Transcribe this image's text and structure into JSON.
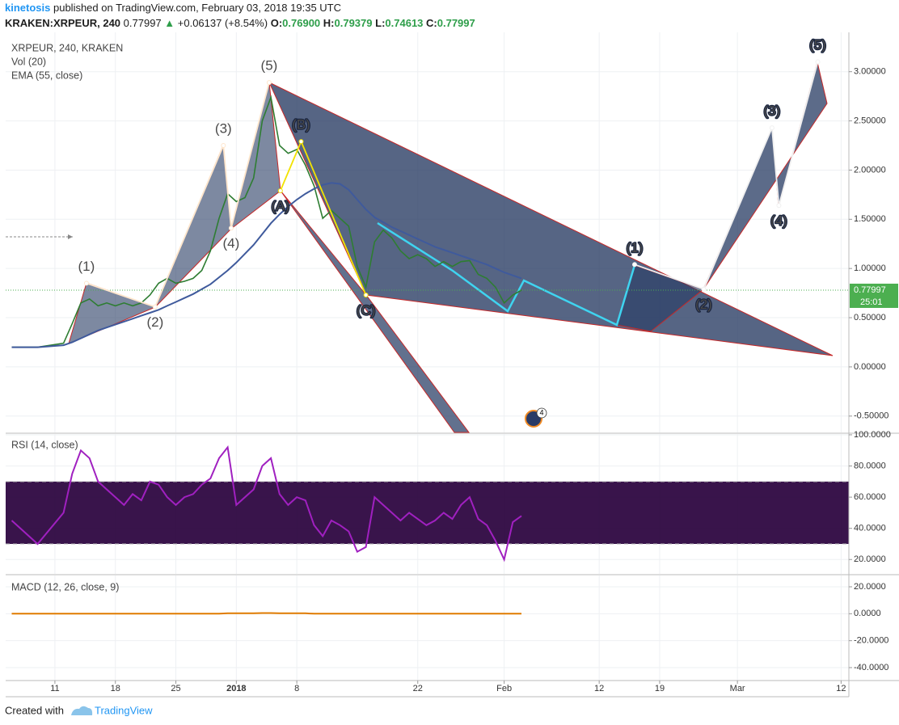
{
  "header": {
    "author": "kinetosis",
    "published": "published on TradingView.com, February 03, 2018 19:35 UTC",
    "symbol": "KRAKEN:XRPEUR, 240",
    "last": "0.77997",
    "change": "+0.06137 (+8.54%)",
    "ohlc": [
      {
        "key": "O:",
        "value": "0.76900"
      },
      {
        "key": "H:",
        "value": "0.79379"
      },
      {
        "key": "L:",
        "value": "0.74613"
      },
      {
        "key": "C:",
        "value": "0.77997"
      }
    ]
  },
  "footer": {
    "created": "Created with",
    "brand": "TradingView"
  },
  "chart_data": {
    "type": "line",
    "x": [
      6,
      9,
      12,
      13,
      14,
      15,
      16,
      17,
      18,
      19,
      20,
      21,
      22,
      23,
      24,
      25,
      26,
      27,
      28,
      29,
      30,
      31,
      32,
      33,
      34,
      35,
      36,
      37,
      38,
      39,
      40,
      41,
      42,
      43,
      44,
      45,
      46,
      47,
      48,
      49,
      50,
      51,
      52,
      53,
      54,
      55,
      56,
      57,
      58,
      59,
      60,
      61,
      62,
      63,
      64,
      65
    ],
    "xlim": [
      5.3,
      102.9
    ],
    "xticks": [
      {
        "value": 11,
        "label": "11"
      },
      {
        "value": 18,
        "label": "18"
      },
      {
        "value": 25,
        "label": "25"
      },
      {
        "value": 32,
        "label": "2018"
      },
      {
        "value": 39,
        "label": "8"
      },
      {
        "value": 53,
        "label": "22"
      },
      {
        "value": 63,
        "label": "Feb"
      },
      {
        "value": 74,
        "label": "12"
      },
      {
        "value": 81,
        "label": "19"
      },
      {
        "value": 90,
        "label": "Mar"
      },
      {
        "value": 102,
        "label": "12"
      }
    ],
    "ylim": [
      -0.666,
      3.4
    ],
    "yticks": [
      {
        "value": -0.5,
        "label": "-0.50000"
      },
      {
        "value": 0,
        "label": "0.00000"
      },
      {
        "value": 0.5,
        "label": "0.50000"
      },
      {
        "value": 1,
        "label": "1.00000"
      },
      {
        "value": 1.5,
        "label": "1.50000"
      },
      {
        "value": 2,
        "label": "2.00000"
      },
      {
        "value": 2.5,
        "label": "2.50000"
      },
      {
        "value": 3,
        "label": "3.00000"
      }
    ],
    "series": [
      {
        "name": "XRPEUR, 240, KRAKEN",
        "color": "#2e7d32",
        "values": [
          0.2,
          0.2,
          0.24,
          0.44,
          0.65,
          0.69,
          0.62,
          0.65,
          0.62,
          0.65,
          0.62,
          0.65,
          0.73,
          0.85,
          0.9,
          0.85,
          0.87,
          0.9,
          0.98,
          1.18,
          1.51,
          1.76,
          1.68,
          1.72,
          1.92,
          2.5,
          2.74,
          2.25,
          2.17,
          2.21,
          2.05,
          1.84,
          1.51,
          1.59,
          1.51,
          1.43,
          1.02,
          0.81,
          1.27,
          1.39,
          1.31,
          1.18,
          1.1,
          1.14,
          1.1,
          1.02,
          1.07,
          1.02,
          1.07,
          1.08,
          0.94,
          0.9,
          0.81,
          0.65,
          0.73,
          0.78
        ]
      },
      {
        "name": "EMA (55, close)",
        "color": "#3f5a9c",
        "values": [
          0.2,
          0.2,
          0.22,
          0.25,
          0.29,
          0.33,
          0.37,
          0.4,
          0.43,
          0.46,
          0.49,
          0.52,
          0.55,
          0.58,
          0.62,
          0.66,
          0.7,
          0.74,
          0.79,
          0.84,
          0.91,
          0.98,
          1.06,
          1.15,
          1.24,
          1.35,
          1.46,
          1.55,
          1.63,
          1.7,
          1.76,
          1.81,
          1.85,
          1.87,
          1.86,
          1.8,
          1.7,
          1.6,
          1.52,
          1.47,
          1.42,
          1.38,
          1.34,
          1.3,
          1.26,
          1.22,
          1.19,
          1.16,
          1.13,
          1.1,
          1.07,
          1.04,
          1.0,
          0.96,
          0.93,
          0.9
        ]
      }
    ],
    "volume_label": "Vol (20)",
    "last_price": 0.77997,
    "last_color": "#4caf50",
    "countdown": "25:01",
    "badge": "4",
    "waves": [
      {
        "color": "#111111",
        "line": "#ffe6cc",
        "labels": [
          "(1)",
          "(2)",
          "(3)",
          "(4)",
          "(5)"
        ],
        "x": [
          14.65,
          22.6,
          30.5,
          31.4,
          35.8
        ],
        "y": [
          0.85,
          0.61,
          2.25,
          1.41,
          2.89
        ]
      },
      {
        "color": "#f2e200",
        "line": "#f2e200",
        "labels": [
          "(A)",
          "(B)",
          "(C)"
        ],
        "x": [
          37.1,
          39.5,
          47.0
        ],
        "y": [
          1.79,
          2.29,
          0.73
        ]
      },
      {
        "color": "#ffffff",
        "line": "#f0f0f0",
        "labels": [
          "(1)",
          "(2)",
          "(3)",
          "(4)",
          "(5)"
        ],
        "x": [
          78.1,
          86.1,
          94.0,
          94.8,
          99.3
        ],
        "y": [
          1.04,
          0.79,
          2.43,
          1.64,
          3.1
        ]
      }
    ],
    "rsi": {
      "type": "line",
      "ylim": [
        10.8,
        100.5
      ],
      "yticks": [
        {
          "value": 20,
          "label": "20.0000"
        },
        {
          "value": 40,
          "label": "40.0000"
        },
        {
          "value": 60,
          "label": "60.0000"
        },
        {
          "value": 80,
          "label": "80.0000"
        },
        {
          "value": 100,
          "label": "100.0000"
        }
      ],
      "bands": [
        30,
        70
      ],
      "series": [
        {
          "name": "RSI (14, close)",
          "color": "#a020c0",
          "values": [
            45,
            30,
            50,
            75,
            90,
            85,
            70,
            65,
            60,
            55,
            62,
            58,
            70,
            68,
            60,
            55,
            60,
            62,
            68,
            72,
            85,
            92,
            55,
            60,
            65,
            80,
            85,
            62,
            55,
            60,
            58,
            42,
            35,
            45,
            42,
            38,
            25,
            28,
            60,
            55,
            50,
            45,
            50,
            46,
            42,
            45,
            50,
            46,
            55,
            60,
            46,
            42,
            32,
            20,
            44,
            48
          ]
        }
      ]
    },
    "macd": {
      "type": "line",
      "ylim": [
        -49.6,
        28.4
      ],
      "yticks": [
        {
          "value": -40,
          "label": "-40.0000"
        },
        {
          "value": -20,
          "label": "-20.0000"
        },
        {
          "value": 0,
          "label": "0.0000"
        },
        {
          "value": 20,
          "label": "20.0000"
        }
      ],
      "series": [
        {
          "name": "MACD (12, 26, close, 9)",
          "color": "#e07b00",
          "values": [
            0,
            0,
            0,
            0,
            0,
            0,
            0,
            0,
            0,
            0,
            0,
            0,
            0,
            0,
            0,
            0,
            0,
            0,
            0,
            0,
            0,
            0.3,
            0.3,
            0.3,
            0.3,
            0.5,
            0.5,
            0.3,
            0.3,
            0.3,
            0.3,
            0,
            0,
            0,
            0,
            0,
            0,
            0,
            0,
            0,
            0,
            0,
            0,
            0,
            0,
            0,
            0,
            0,
            0,
            0,
            0,
            0,
            0,
            0,
            0,
            0
          ]
        }
      ]
    }
  }
}
